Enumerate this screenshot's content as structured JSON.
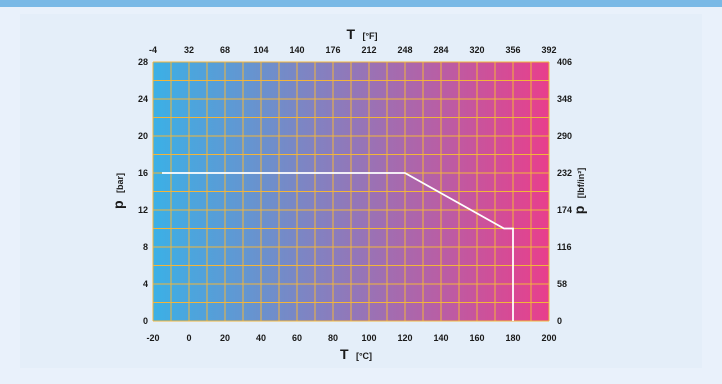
{
  "chart_data": {
    "type": "line",
    "x_axis_bottom": {
      "symbol": "T",
      "unit": "[°C]",
      "range": [
        -20,
        200
      ],
      "ticks": [
        -20,
        0,
        20,
        40,
        60,
        80,
        100,
        120,
        140,
        160,
        180,
        200
      ]
    },
    "x_axis_top": {
      "symbol": "T",
      "unit": "[°F]",
      "ticks": [
        -4,
        32,
        68,
        104,
        140,
        176,
        212,
        248,
        284,
        320,
        356,
        392
      ]
    },
    "y_axis_left": {
      "symbol": "p",
      "unit": "[bar]",
      "range": [
        0,
        28
      ],
      "ticks": [
        0,
        4,
        8,
        12,
        16,
        20,
        24,
        28
      ]
    },
    "y_axis_right": {
      "symbol": "p",
      "unit": "[lbf/in²]",
      "ticks": [
        0,
        58,
        116,
        174,
        232,
        290,
        348,
        406
      ]
    },
    "grid": true,
    "grid_color": "#f2b53a",
    "gradient_colors": [
      "#3bb0e6",
      "#e83f8c"
    ],
    "line_color": "#ffffff",
    "series": [
      {
        "x": [
          -15,
          120,
          175,
          180,
          180
        ],
        "y": [
          16,
          16,
          10,
          10,
          0
        ]
      }
    ]
  }
}
